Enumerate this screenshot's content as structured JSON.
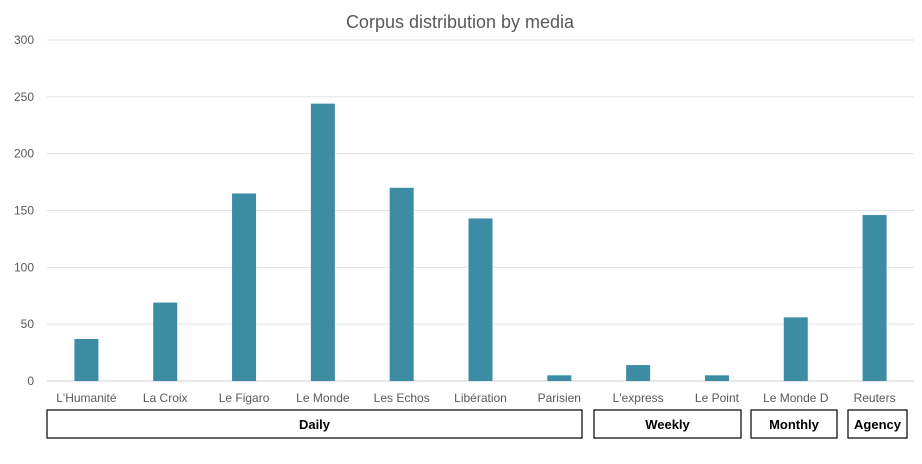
{
  "chart_data": {
    "type": "bar",
    "title": "Corpus distribution by media",
    "xlabel": "",
    "ylabel": "",
    "ylim": [
      0,
      300
    ],
    "yticks": [
      0,
      50,
      100,
      150,
      200,
      250,
      300
    ],
    "grid": true,
    "bar_color": "#3C8CA3",
    "categories": [
      "L'Humanité",
      "La Croix",
      "Le Figaro",
      "Le Monde",
      "Les Echos",
      "Libération",
      "Parisien",
      "L'express",
      "Le Point",
      "Le Monde D",
      "Reuters"
    ],
    "values": [
      37,
      69,
      165,
      244,
      170,
      143,
      5,
      14,
      5,
      56,
      146
    ],
    "groups": [
      {
        "label": "Daily",
        "categories": [
          "L'Humanité",
          "La Croix",
          "Le Figaro",
          "Le Monde",
          "Les Echos",
          "Libération",
          "Parisien"
        ]
      },
      {
        "label": "Weekly",
        "categories": [
          "L'express",
          "Le Point"
        ]
      },
      {
        "label": "Monthly",
        "categories": [
          "Le Monde D"
        ]
      },
      {
        "label": "Agency",
        "categories": [
          "Reuters"
        ]
      }
    ]
  }
}
